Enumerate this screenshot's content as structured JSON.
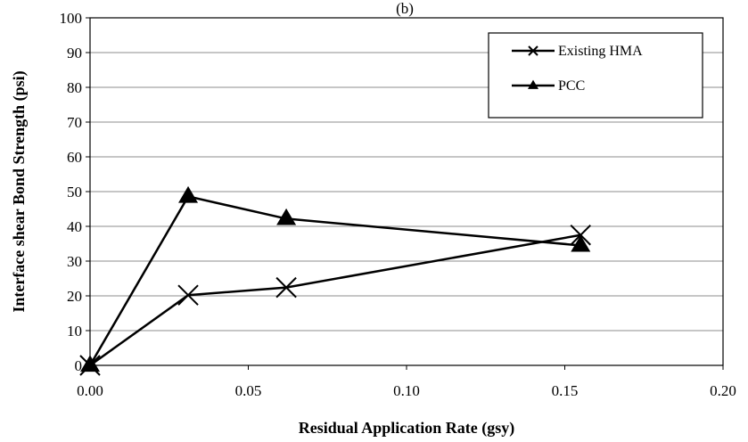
{
  "chart_data": {
    "type": "line",
    "title": "(b)",
    "xlabel": "Residual Application Rate (gsy)",
    "ylabel": "Interface shear Bond Strength (psi)",
    "xlim": [
      0,
      0.2
    ],
    "ylim": [
      0,
      100
    ],
    "x_ticks": [
      0.0,
      0.05,
      0.1,
      0.15,
      0.2
    ],
    "x_tick_labels": [
      "0.00",
      "0.05",
      "0.10",
      "0.15",
      "0.20"
    ],
    "y_ticks": [
      0,
      10,
      20,
      30,
      40,
      50,
      60,
      70,
      80,
      90,
      100
    ],
    "y_tick_labels": [
      "0",
      "10",
      "20",
      "30",
      "40",
      "50",
      "60",
      "70",
      "80",
      "90",
      "100"
    ],
    "grid": "horizontal",
    "legend_position": "top-right",
    "series": [
      {
        "name": "Existing HMA",
        "marker": "x",
        "color": "#000000",
        "x": [
          0,
          0.031,
          0.062,
          0.155
        ],
        "y": [
          0,
          20.2,
          22.4,
          37.5
        ]
      },
      {
        "name": "PCC",
        "marker": "triangle",
        "color": "#000000",
        "x": [
          0,
          0.031,
          0.062,
          0.155
        ],
        "y": [
          0,
          48.6,
          42.2,
          34.5
        ]
      }
    ]
  }
}
